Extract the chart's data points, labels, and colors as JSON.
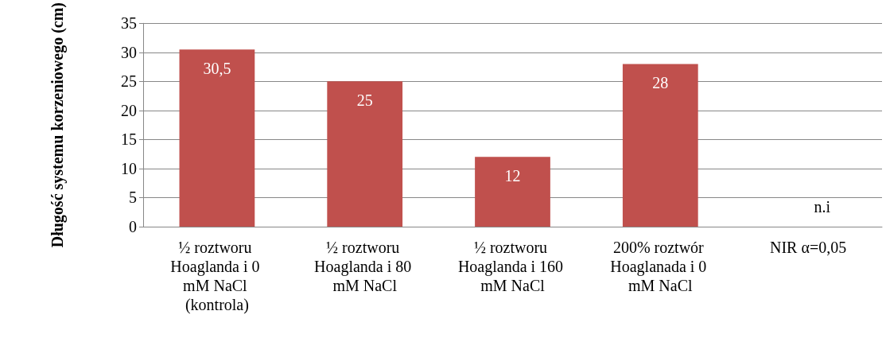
{
  "chart_data": {
    "type": "bar",
    "ylabel": "Długość systemu korzeniowego (cm)",
    "categories": [
      "½ roztworu Hoaglanda i 0 mM NaCl (kontrola)",
      "½ roztworu Hoaglanda i 80 mM NaCl",
      "½ roztworu Hoaglanda i 160 mM NaCl",
      "200% roztwór Hoaglanada i 0 mM NaCl",
      "NIR α=0,05"
    ],
    "values": [
      30.5,
      25,
      12,
      28,
      null
    ],
    "value_labels": [
      "30,5",
      "25",
      "12",
      "28",
      null
    ],
    "color": "#c0504d",
    "ylim": [
      0,
      35
    ],
    "yticks": [
      0,
      5,
      10,
      15,
      20,
      25,
      30,
      35
    ],
    "grid": "y",
    "annotations": [
      "n.i"
    ]
  }
}
